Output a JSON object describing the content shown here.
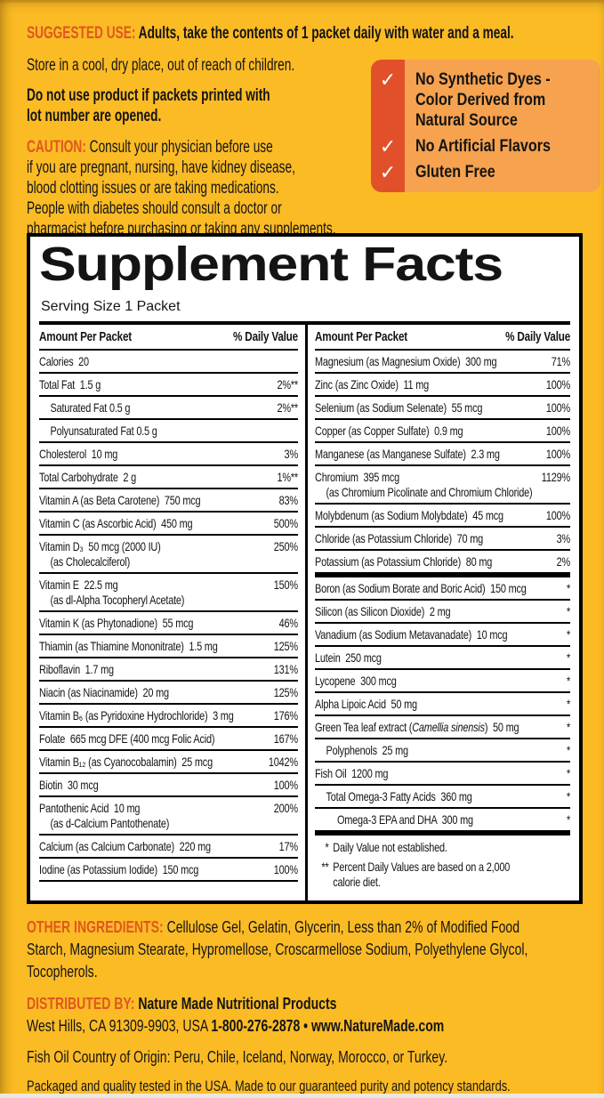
{
  "colors": {
    "background": "#FBBB25",
    "accent_orange": "#E0571F",
    "callout_red": "#E1502B",
    "callout_orange": "#F6A24F",
    "panel_bg": "#FFFFFF",
    "text_black": "#141414"
  },
  "top": {
    "suggested_use_label": "SUGGESTED USE:",
    "suggested_use_text": "Adults, take the contents of 1 packet daily with water and a meal.",
    "store_text": "Store in a cool, dry place, out of reach of children.",
    "do_not_use_text": "Do not use product if packets printed with\nlot number are opened.",
    "caution_label": "CAUTION:",
    "caution_text": "Consult your physician before use\nif you are pregnant, nursing, have kidney disease,\nblood clotting issues or are taking medications.\nPeople with diabetes should consult a doctor or\npharmacist before purchasing or taking any supplements."
  },
  "callout": {
    "check": "✓",
    "items": [
      "No Synthetic Dyes -\nColor Derived from\nNatural Source",
      "No Artificial Flavors",
      "Gluten Free"
    ]
  },
  "panel": {
    "title": "Supplement Facts",
    "serving": "Serving Size 1 Packet",
    "header_amount": "Amount Per Packet",
    "header_dv": "% Daily Value",
    "left_rows": [
      {
        "l1": "Calories  20",
        "dv": ""
      },
      {
        "l1": "Total Fat  1.5 g",
        "dv": "2%**"
      },
      {
        "l1": "Saturated Fat 0.5 g",
        "dv": "2%**",
        "ind": 1
      },
      {
        "l1": "Polyunsaturated Fat 0.5 g",
        "dv": "",
        "ind": 1
      },
      {
        "l1": "Cholesterol  10 mg",
        "dv": "3%"
      },
      {
        "l1": "Total Carbohydrate  2 g",
        "dv": "1%**"
      },
      {
        "l1": "Vitamin A (as Beta Carotene)  750 mcg",
        "dv": "83%"
      },
      {
        "l1": "Vitamin C (as Ascorbic Acid)  450 mg",
        "dv": "500%"
      },
      {
        "l1": "Vitamin D₃  50 mcg (2000 IU)",
        "l2": "(as Cholecalciferol)",
        "dv": "250%"
      },
      {
        "l1": "Vitamin E  22.5 mg",
        "l2": "(as dl-Alpha Tocopheryl Acetate)",
        "dv": "150%"
      },
      {
        "l1": "Vitamin K (as Phytonadione)  55 mcg",
        "dv": "46%"
      },
      {
        "l1": "Thiamin (as Thiamine Mononitrate)  1.5 mg",
        "dv": "125%"
      },
      {
        "l1": "Riboflavin  1.7 mg",
        "dv": "131%"
      },
      {
        "l1": "Niacin (as Niacinamide)  20 mg",
        "dv": "125%"
      },
      {
        "l1": "Vitamin B₆ (as Pyridoxine Hydrochloride)  3 mg",
        "dv": "176%"
      },
      {
        "l1": "Folate  665 mcg DFE (400 mcg Folic Acid)",
        "dv": "167%"
      },
      {
        "l1": "Vitamin B₁₂ (as Cyanocobalamin)  25 mcg",
        "dv": "1042%"
      },
      {
        "l1": "Biotin  30 mcg",
        "dv": "100%"
      },
      {
        "l1": "Pantothenic Acid  10 mg",
        "l2": "(as d-Calcium Pantothenate)",
        "dv": "200%"
      },
      {
        "l1": "Calcium (as Calcium Carbonate)  220 mg",
        "dv": "17%"
      },
      {
        "l1": "Iodine (as Potassium Iodide)  150 mcg",
        "dv": "100%"
      }
    ],
    "right_rows": [
      {
        "l1": "Magnesium (as Magnesium Oxide)  300 mg",
        "dv": "71%"
      },
      {
        "l1": "Zinc (as Zinc Oxide)  11 mg",
        "dv": "100%"
      },
      {
        "l1": "Selenium (as Sodium Selenate)  55 mcg",
        "dv": "100%"
      },
      {
        "l1": "Copper (as Copper Sulfate)  0.9 mg",
        "dv": "100%"
      },
      {
        "l1": "Manganese (as Manganese Sulfate)  2.3 mg",
        "dv": "100%"
      },
      {
        "l1": "Chromium  395 mcg",
        "l2": "(as Chromium Picolinate and Chromium Chloride)",
        "dv": "1129%"
      },
      {
        "l1": "Molybdenum (as Sodium Molybdate)  45 mcg",
        "dv": "100%"
      },
      {
        "l1": "Chloride (as Potassium Chloride)  70 mg",
        "dv": "3%"
      },
      {
        "l1": "Potassium (as Potassium Chloride)  80 mg",
        "dv": "2%",
        "thick": true
      },
      {
        "l1": "Boron (as Sodium Borate and Boric Acid)  150 mcg",
        "dv": "*"
      },
      {
        "l1": "Silicon (as Silicon Dioxide)  2 mg",
        "dv": "*"
      },
      {
        "l1": "Vanadium (as Sodium Metavanadate)  10 mcg",
        "dv": "*"
      },
      {
        "l1": "Lutein  250 mcg",
        "dv": "*"
      },
      {
        "l1": "Lycopene  300 mcg",
        "dv": "*"
      },
      {
        "l1": "Alpha Lipoic Acid  50 mg",
        "dv": "*"
      },
      {
        "l1": [
          {
            "t": "Green Tea leaf extract ("
          },
          {
            "t": "Camellia sinensis",
            "i": true
          },
          {
            "t": ")  50 mg"
          }
        ],
        "dv": "*"
      },
      {
        "l1": "Polyphenols  25 mg",
        "dv": "*",
        "ind": 1
      },
      {
        "l1": "Fish Oil  1200 mg",
        "dv": "*"
      },
      {
        "l1": "Total Omega-3 Fatty Acids  360 mg",
        "dv": "*",
        "ind": 1
      },
      {
        "l1": "Omega-3 EPA and DHA  300 mg",
        "dv": "*",
        "ind": 2,
        "thick": true
      }
    ],
    "footnotes": [
      {
        "sym": "*",
        "text": "Daily Value not established."
      },
      {
        "sym": "**",
        "text": "Percent Daily Values are based on a 2,000\ncalorie diet."
      }
    ]
  },
  "bottom": {
    "other_label": "OTHER INGREDIENTS:",
    "other_text": "Cellulose Gel, Gelatin, Glycerin, Less than 2% of Modified Food\nStarch, Magnesium Stearate, Hypromellose, Croscarmellose Sodium, Polyethylene Glycol,\nTocopherols.",
    "distributed_label": "DISTRIBUTED BY:",
    "distributed_name": "Nature Made Nutritional Products",
    "address": "West Hills, CA 91309-9903, USA",
    "phone_web": "1-800-276-2878 • www.NatureMade.com",
    "fish_origin": "Fish Oil Country of Origin: Peru, Chile, Iceland, Norway, Morocco, or Turkey.",
    "packaged": "Packaged and quality tested in the USA. Made to our guaranteed purity and potency standards."
  }
}
